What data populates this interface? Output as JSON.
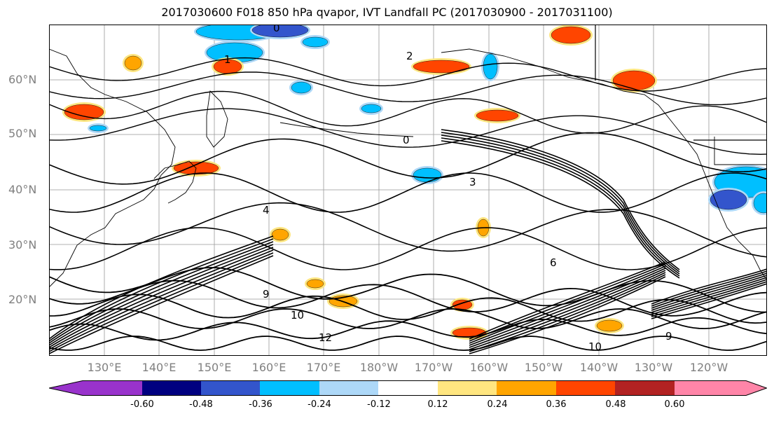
{
  "title": "2017030600 F018 850 hPa qvapor, IVT Landfall PC (2017030900 - 2017031100)",
  "map": {
    "projection": "PlateCarree",
    "lon_range": [
      "125°E",
      "115°W"
    ],
    "lat_range": [
      "10°N",
      "70°N"
    ],
    "gridlines": true,
    "region": "North Pacific Ocean",
    "lat_labels": [
      "60°N",
      "50°N",
      "40°N",
      "30°N",
      "20°N"
    ],
    "lon_labels": [
      "130°E",
      "140°E",
      "150°E",
      "160°E",
      "170°E",
      "180°W",
      "170°W",
      "160°W",
      "150°W",
      "140°W",
      "130°W",
      "120°W"
    ],
    "contour_labels": [
      "0",
      "1",
      "2",
      "3",
      "4",
      "6",
      "9",
      "10",
      "12"
    ]
  },
  "colorbar": {
    "ticks": [
      "-0.60",
      "-0.48",
      "-0.36",
      "-0.24",
      "-0.12",
      "0.12",
      "0.24",
      "0.36",
      "0.48",
      "0.60"
    ],
    "colors": [
      "#9933cc",
      "#000080",
      "#3355cc",
      "#00bfff",
      "#add8f8",
      "#ffffff",
      "#ffe680",
      "#ffa500",
      "#ff4500",
      "#b22222",
      "#ff85a8"
    ],
    "extend": "both"
  }
}
